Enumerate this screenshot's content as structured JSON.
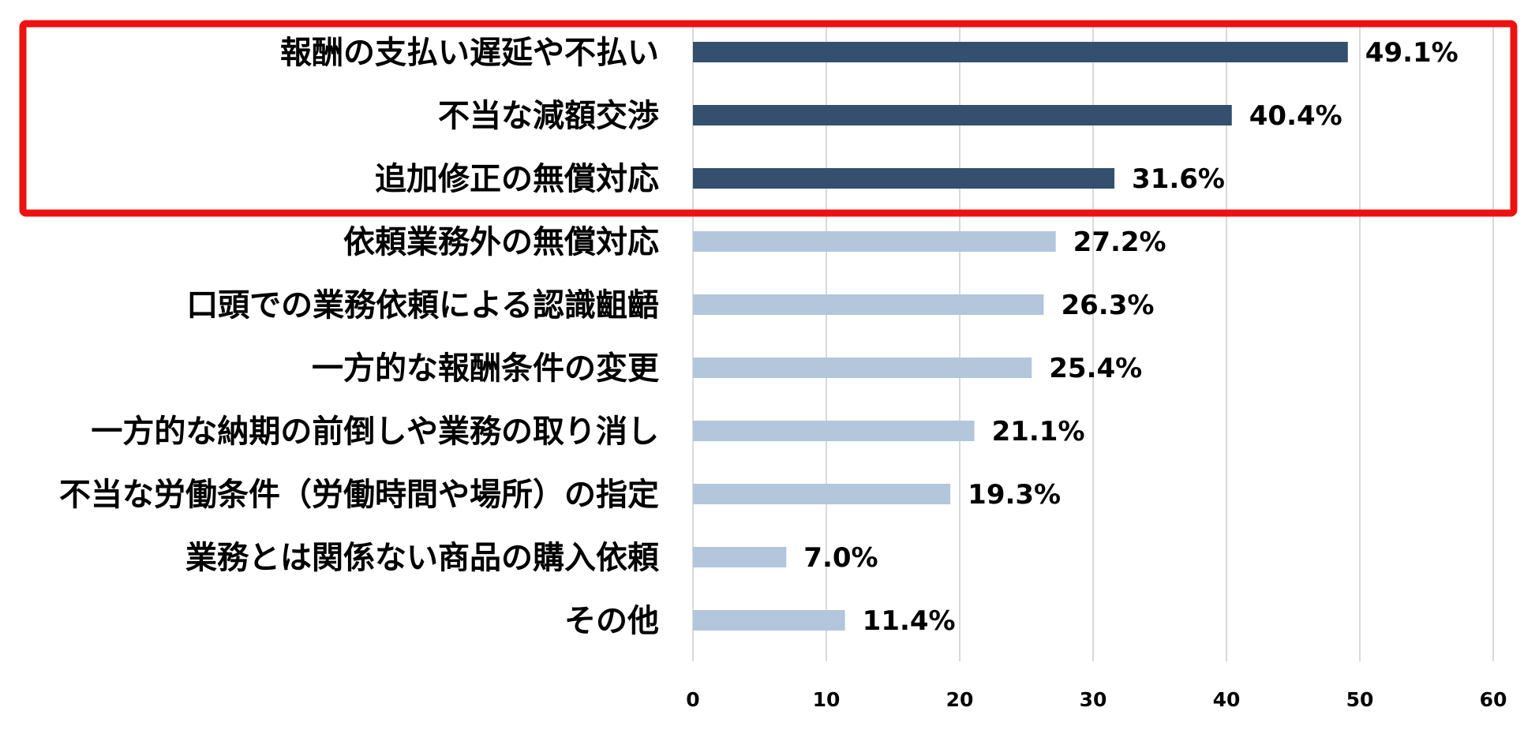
{
  "chart_data": {
    "type": "bar",
    "orientation": "horizontal",
    "title": "",
    "xlabel": "",
    "ylabel": "",
    "categories": [
      "報酬の支払い遅延や不払い",
      "不当な減額交渉",
      "追加修正の無償対応",
      "依頼業務外の無償対応",
      "口頭での業務依頼による認識齟齬",
      "一方的な報酬条件の変更",
      "一方的な納期の前倒しや業務の取り消し",
      "不当な労働条件（労働時間や場所）の指定",
      "業務とは関係ない商品の購入依頼",
      "その他"
    ],
    "values": [
      49.1,
      40.4,
      31.6,
      27.2,
      26.3,
      25.4,
      21.1,
      19.3,
      7.0,
      11.4
    ],
    "value_labels": [
      "49.1%",
      "40.4%",
      "31.6%",
      "27.2%",
      "26.3%",
      "25.4%",
      "21.1%",
      "19.3%",
      "7.0%",
      "11.4%"
    ],
    "highlighted": [
      true,
      true,
      true,
      false,
      false,
      false,
      false,
      false,
      false,
      false
    ],
    "xlim": [
      0,
      60
    ],
    "xticks": [
      0,
      10,
      20,
      30,
      40,
      50,
      60
    ],
    "xtick_labels": [
      "0",
      "10",
      "20",
      "30",
      "40",
      "50",
      "60"
    ],
    "grid": "vertical",
    "legend": "none",
    "highlight_box": "top three bars",
    "colors": {
      "highlight_bar": "#34506e",
      "normal_bar": "#b4c6dc",
      "gridline": "#d9d9d9",
      "highlight_box": "#ee1111"
    }
  }
}
